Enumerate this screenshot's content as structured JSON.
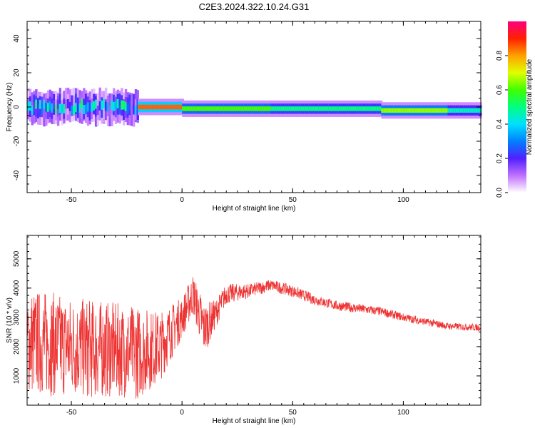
{
  "title": "C2E3.2024.322.10.24.G31",
  "chart_data": [
    {
      "type": "heatmap",
      "xlabel": "Height of straight line (km)",
      "ylabel": "Frequency (Hz)",
      "xlim": [
        -70,
        135
      ],
      "ylim": [
        -50,
        50
      ],
      "xticks": [
        "-50",
        "0",
        "50",
        "100"
      ],
      "yticks": [
        "-40",
        "-20",
        "0",
        "20",
        "40"
      ],
      "colorbar": {
        "label": "Normalized spectral amplitude",
        "range": [
          0,
          1
        ],
        "ticks": [
          "0.0",
          "0.2",
          "0.4",
          "0.6",
          "0.8"
        ],
        "colormap": [
          "#ffffff",
          "#c070ff",
          "#5020ff",
          "#0080ff",
          "#00e0ff",
          "#00ff80",
          "#40ff00",
          "#e0ff00",
          "#ffa000",
          "#ff2000",
          "#ff0080"
        ]
      },
      "band": [
        {
          "x0": -70,
          "x1": -20,
          "center": 0,
          "halfwidth": 6,
          "amplitude": 0.3,
          "scatter": true
        },
        {
          "x0": -20,
          "x1": 0,
          "center": 0,
          "halfwidth": 3,
          "amplitude": 0.85
        },
        {
          "x0": 0,
          "x1": 40,
          "center": -1,
          "halfwidth": 3,
          "amplitude": 0.6
        },
        {
          "x0": 40,
          "x1": 90,
          "center": -1,
          "halfwidth": 3,
          "amplitude": 0.5
        },
        {
          "x0": 90,
          "x1": 120,
          "center": -2,
          "halfwidth": 3,
          "amplitude": 0.65
        },
        {
          "x0": 120,
          "x1": 135,
          "center": -2,
          "halfwidth": 3,
          "amplitude": 0.45
        }
      ]
    },
    {
      "type": "line",
      "xlabel": "Height of straight line (km)",
      "ylabel": "SNR (10 * v/v)",
      "xlim": [
        -70,
        135
      ],
      "ylim": [
        0,
        5800
      ],
      "xticks": [
        "-50",
        "0",
        "50",
        "100"
      ],
      "yticks": [
        "1000",
        "2000",
        "3000",
        "4000",
        "5000"
      ],
      "color": "#ee3333",
      "envelope": {
        "x": [
          -70,
          -60,
          -50,
          -40,
          -30,
          -20,
          -10,
          0,
          5,
          10,
          15,
          20,
          30,
          40,
          50,
          60,
          70,
          80,
          90,
          100,
          110,
          120,
          135
        ],
        "mean": [
          2200,
          2100,
          2000,
          1900,
          1900,
          1800,
          2000,
          3000,
          3800,
          2600,
          3100,
          3800,
          3900,
          4100,
          3900,
          3600,
          3400,
          3300,
          3200,
          3000,
          2850,
          2700,
          2650
        ],
        "spread": [
          1800,
          1800,
          1700,
          1700,
          1600,
          1600,
          1200,
          700,
          700,
          900,
          500,
          350,
          250,
          200,
          200,
          180,
          170,
          160,
          150,
          140,
          130,
          120,
          120
        ]
      }
    }
  ]
}
